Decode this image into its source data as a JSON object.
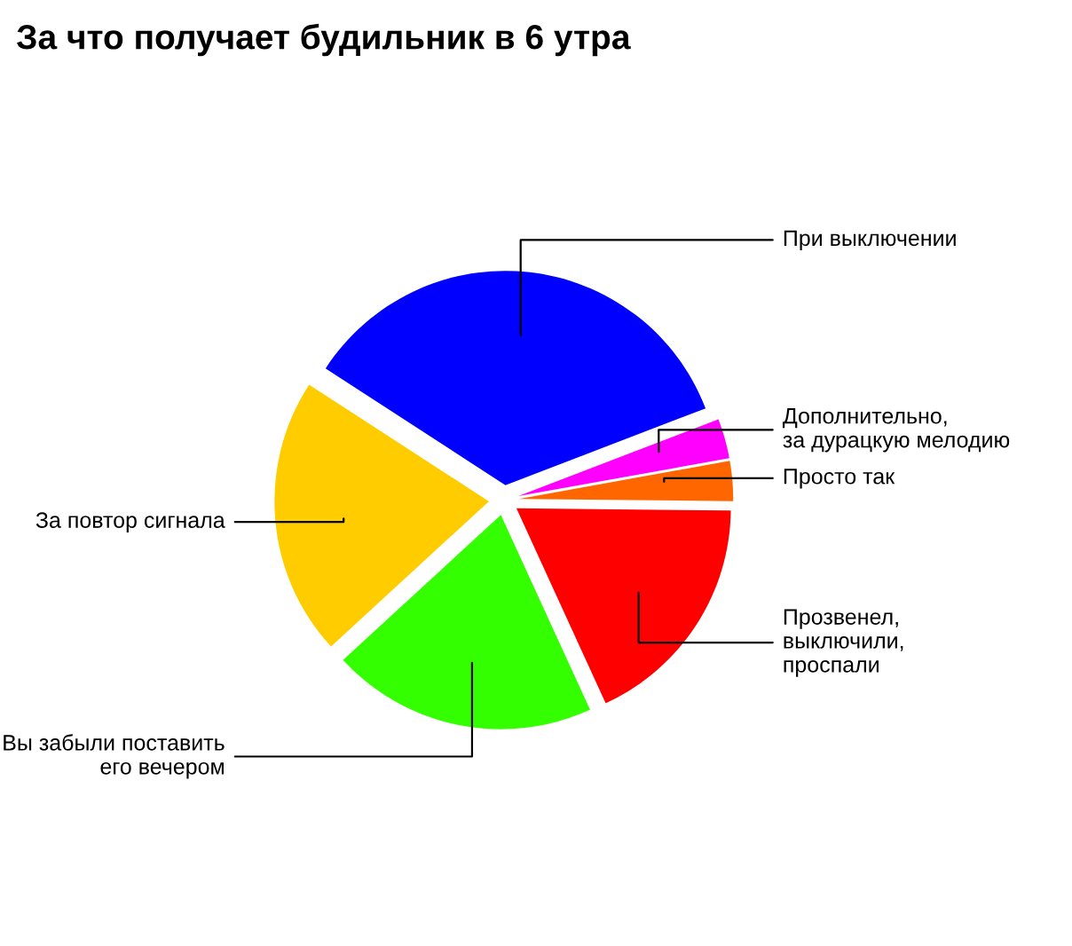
{
  "chart_data": {
    "type": "pie",
    "title": "За что получает будильник в 6 утра",
    "categories": [
      "При выключении",
      "Дополнительно,\nза дурацкую мелодию",
      "Просто так",
      "Прозвенел,\nвыключили,\nпроспали",
      "Вы забыли поставить\nего вечером",
      "За повтор сигнала"
    ],
    "values": [
      35,
      3,
      3,
      18,
      20,
      21
    ],
    "colors": [
      "#0000ff",
      "#ff00ff",
      "#ff6600",
      "#ff0000",
      "#33ff00",
      "#ffcc00"
    ]
  }
}
